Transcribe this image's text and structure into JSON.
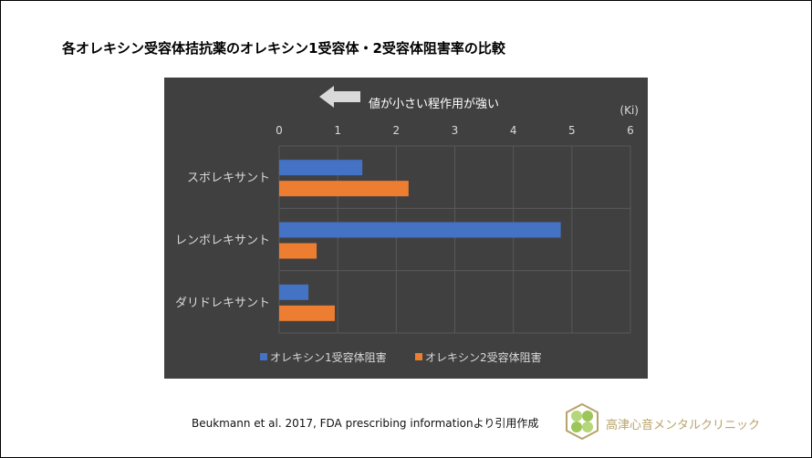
{
  "title": "各オレキシン受容体拮抗薬のオレキシン1受容体・2受容体阻害率の比較",
  "annotation": "値が小さい程作用が強い",
  "citation": "Beukmann et al. 2017, FDA prescribing informationより引用作成",
  "clinic_name": "高津心音メンタルクリニック",
  "chart_data": {
    "type": "bar",
    "orientation": "horizontal",
    "unit_label": "(Ki)",
    "categories": [
      "スボレキサント",
      "レンボレキサント",
      "ダリドレキサント"
    ],
    "series": [
      {
        "name": "オレキシン1受容体阻害",
        "color": "#4472c4",
        "values": [
          1.42,
          4.81,
          0.5
        ]
      },
      {
        "name": "オレキシン2受容体阻害",
        "color": "#ed7d31",
        "values": [
          2.21,
          0.64,
          0.95
        ]
      }
    ],
    "xlim": [
      0,
      6
    ],
    "xticks": [
      "0",
      "1",
      "2",
      "3",
      "4",
      "5",
      "6"
    ],
    "grid": true,
    "legend": "bottom",
    "background": "#404040"
  }
}
